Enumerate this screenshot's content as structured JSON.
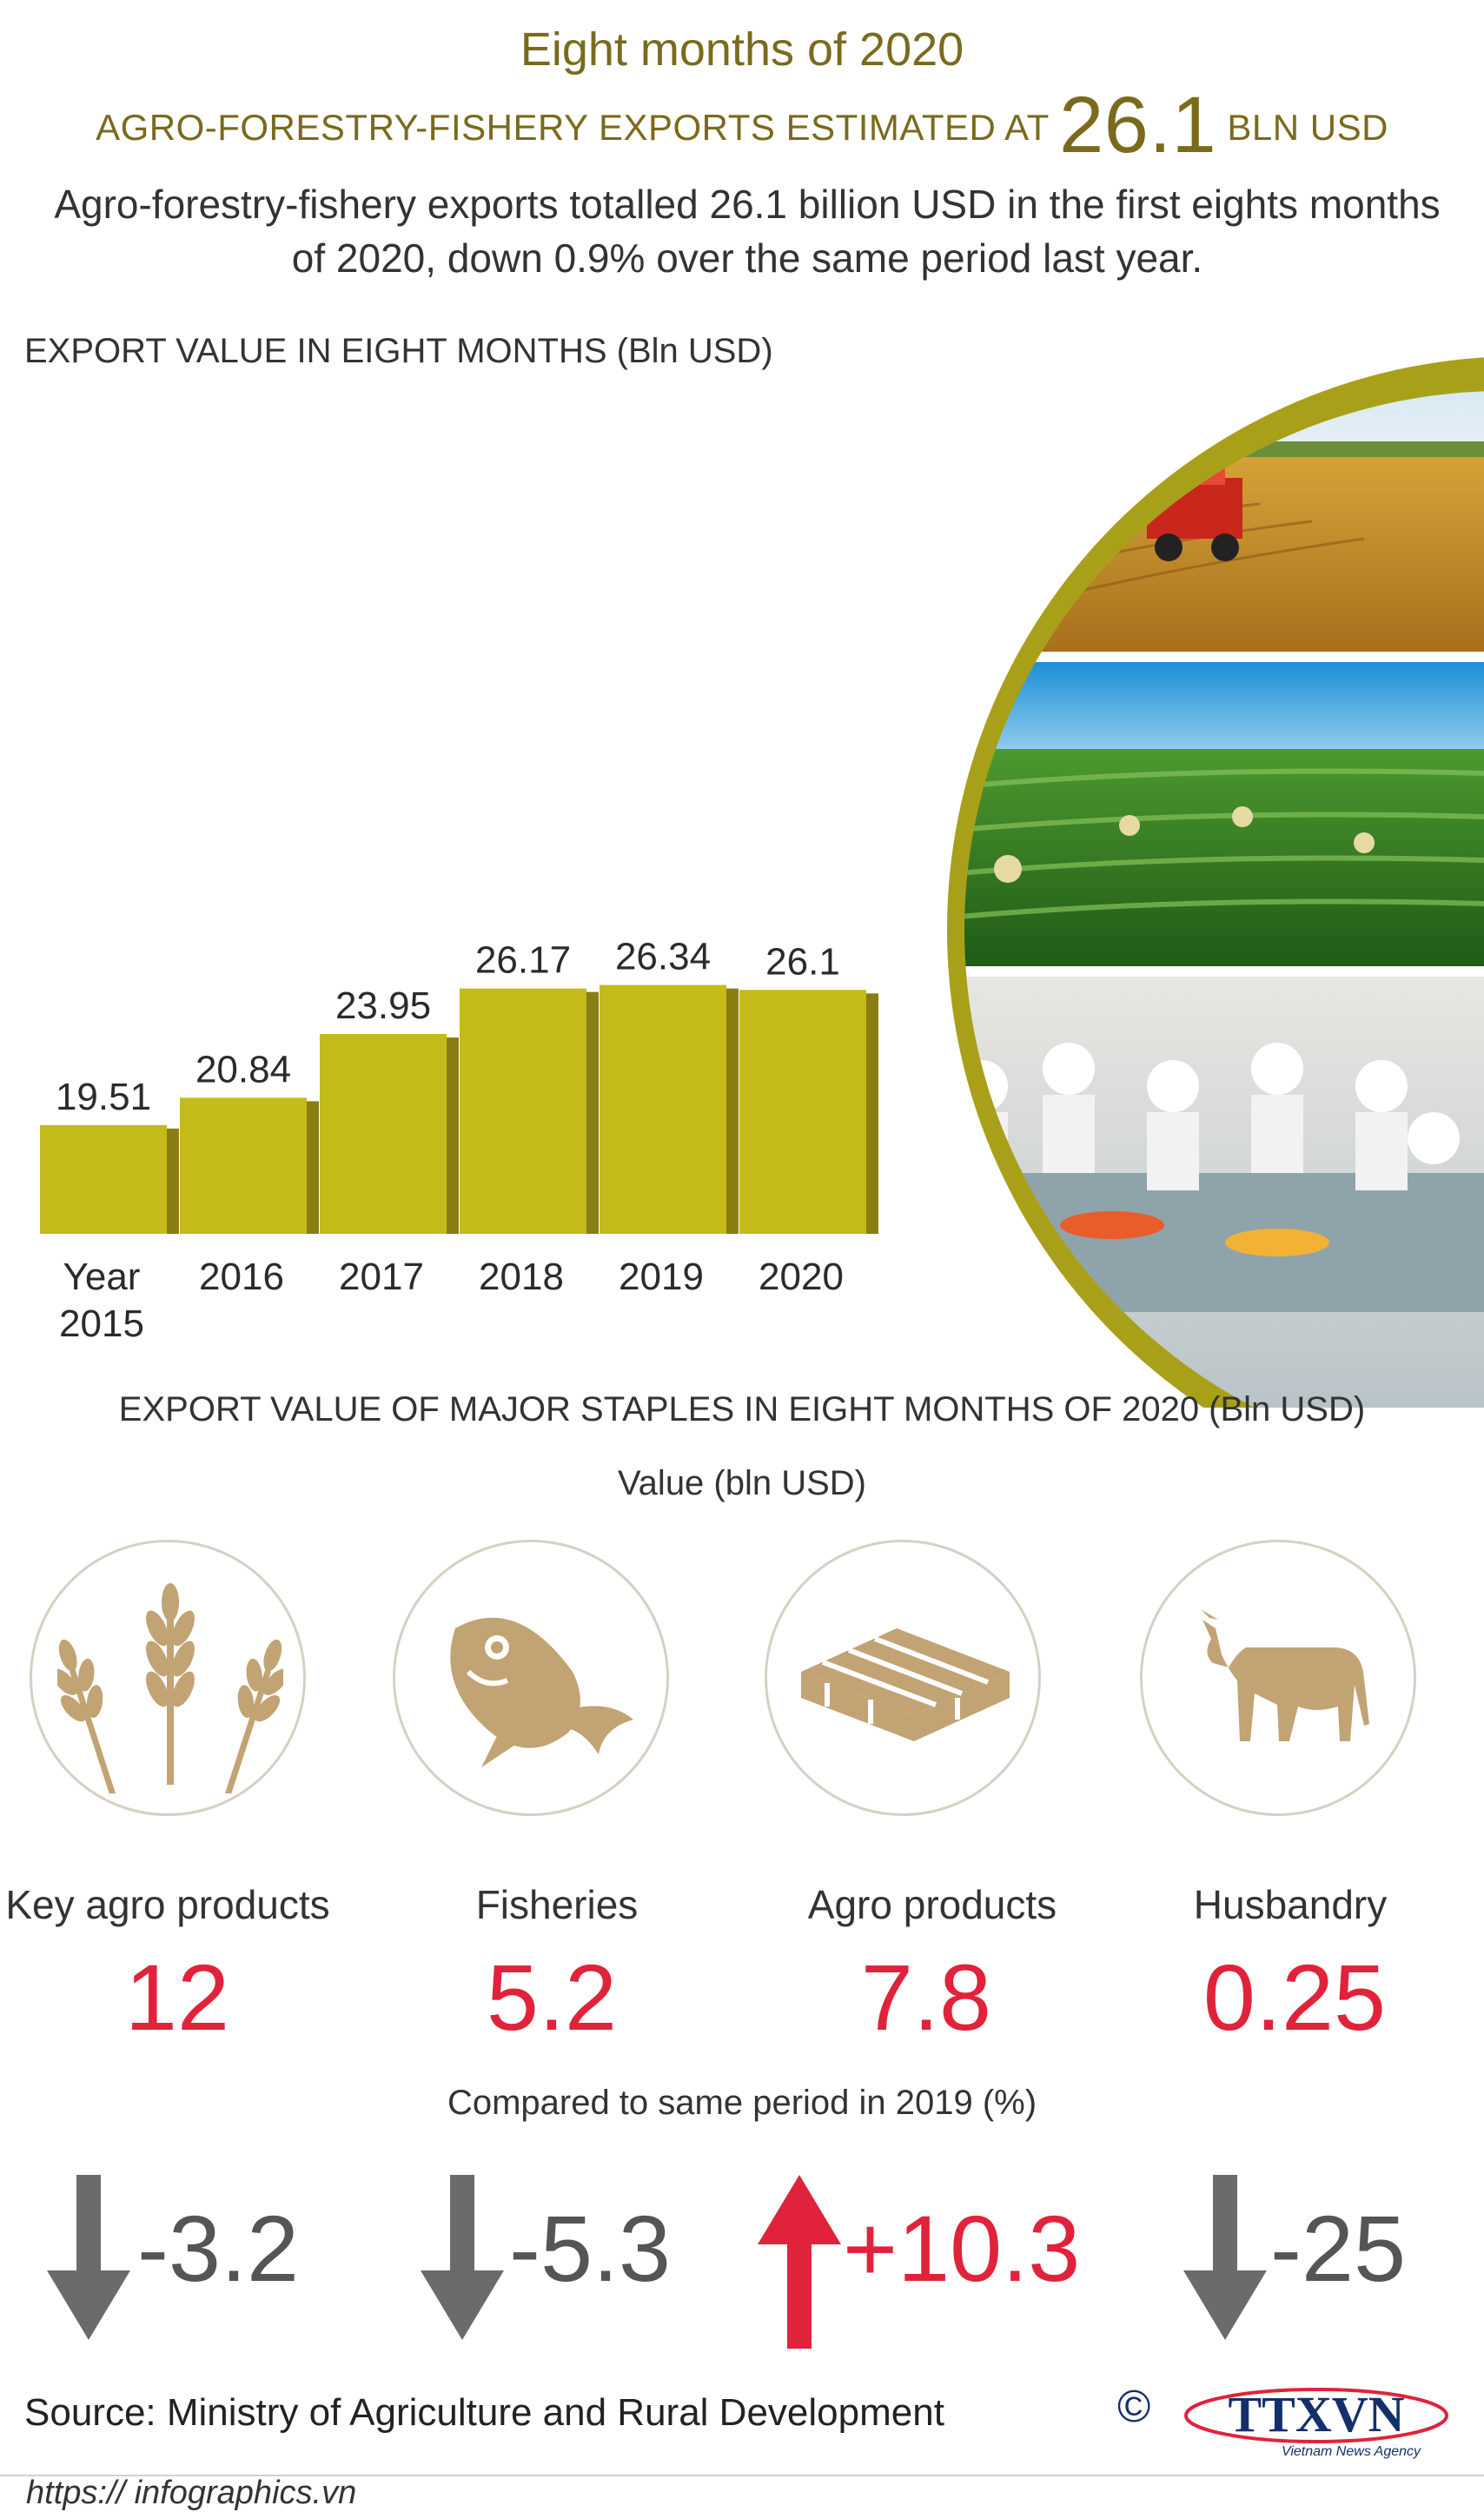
{
  "header": {
    "title": "Eight months of 2020",
    "subtitle_prefix": "AGRO-FORESTRY-FISHERY EXPORTS ESTIMATED AT",
    "subtitle_value": "26.1",
    "subtitle_unit": "BLN USD",
    "lead": "Agro-forestry-fishery exports totalled 26.1 billion USD in the first eights months of 2020, down 0.9% over the same period last year."
  },
  "colors": {
    "bar": "#c4ba1a",
    "bar_dark": "#8a7d14",
    "accent_gold": "#7a6a1c",
    "icon": "#c2a373",
    "value_red": "#e0233a",
    "arrow_gray": "#6b6b6b",
    "arrow_red": "#e0233a"
  },
  "chart_data": {
    "type": "bar",
    "title": "EXPORT VALUE IN EIGHT MONTHS  (Bln USD)",
    "categories": [
      "Year 2015",
      "2016",
      "2017",
      "2018",
      "2019",
      "2020"
    ],
    "values": [
      19.51,
      20.84,
      23.95,
      26.17,
      26.34,
      26.1
    ],
    "value_labels": [
      "19.51",
      "20.84",
      "23.95",
      "26.17",
      "26.34",
      "26.1"
    ],
    "xlabel": "",
    "ylabel": "",
    "grid": false,
    "legend": "none"
  },
  "staples": {
    "title": "EXPORT VALUE OF MAJOR STAPLES IN EIGHT MONTHS OF 2020 (Bln USD)",
    "value_label": "Value (bln USD)",
    "compare_label": "Compared to same period in 2019 (%)",
    "items": [
      {
        "icon": "wheat-icon",
        "label": "Key agro products",
        "value": "12",
        "change": "-3.2",
        "direction": "down"
      },
      {
        "icon": "fish-icon",
        "label": "Fisheries",
        "value": "5.2",
        "change": "-5.3",
        "direction": "down"
      },
      {
        "icon": "pallet-icon",
        "label": "Agro products",
        "value": "7.8",
        "change": "+10.3",
        "direction": "up"
      },
      {
        "icon": "cow-icon",
        "label": "Husbandry",
        "value": "0.25",
        "change": "-25",
        "direction": "down"
      }
    ]
  },
  "footer": {
    "source": "Source: Ministry of Agriculture and Rural Development",
    "copyright": "©",
    "logo_text": "TTXVN",
    "logo_subtext": "Vietnam News Agency",
    "url": "https:// infographics.vn"
  },
  "photos": [
    {
      "icon": "rice-harvest-photo"
    },
    {
      "icon": "tea-plantation-photo"
    },
    {
      "icon": "fish-processing-photo"
    }
  ]
}
